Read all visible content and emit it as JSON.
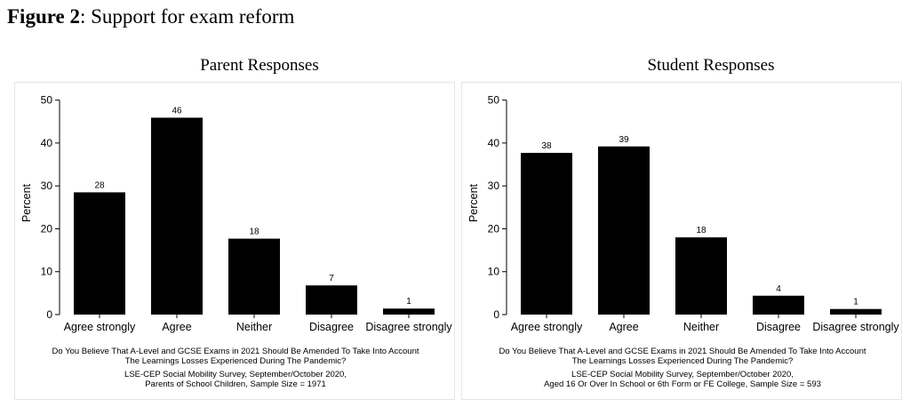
{
  "figure": {
    "label": "Figure 2",
    "title": ": Support for exam reform"
  },
  "chart_data": [
    {
      "type": "bar",
      "title": "Parent Responses",
      "ylabel": "Percent",
      "xlabel": "",
      "ylim": [
        0,
        52
      ],
      "yticks": [
        0,
        10,
        20,
        30,
        40,
        50
      ],
      "categories": [
        "Agree strongly",
        "Agree",
        "Neither",
        "Disagree",
        "Disagree strongly"
      ],
      "values": [
        28.5,
        45.9,
        17.7,
        6.8,
        1.4
      ],
      "data_labels": [
        "28",
        "46",
        "18",
        "7",
        "1"
      ],
      "bar_color": "#000000",
      "notes": [
        "Do You Believe That A-Level and GCSE Exams in 2021 Should Be Amended To Take Into Account",
        "The Learnings Losses Experienced During The Pandemic?",
        "LSE-CEP Social Mobility Survey, September/October 2020,",
        "Parents of School Children, Sample Size = 1971"
      ]
    },
    {
      "type": "bar",
      "title": "Student Responses",
      "ylabel": "Percent",
      "xlabel": "",
      "ylim": [
        0,
        52
      ],
      "yticks": [
        0,
        10,
        20,
        30,
        40,
        50
      ],
      "categories": [
        "Agree strongly",
        "Agree",
        "Neither",
        "Disagree",
        "Disagree strongly"
      ],
      "values": [
        37.7,
        39.2,
        18.0,
        4.4,
        1.3
      ],
      "data_labels": [
        "38",
        "39",
        "18",
        "4",
        "1"
      ],
      "bar_color": "#000000",
      "notes": [
        "Do You Believe That A-Level and GCSE Exams in 2021 Should Be Amended To Take Into Account",
        "The Learnings Losses Experienced During The Pandemic?",
        "LSE-CEP Social Mobility Survey, September/October 2020,",
        "Aged 16 Or Over In School or 6th Form or FE College, Sample Size = 593"
      ]
    }
  ]
}
